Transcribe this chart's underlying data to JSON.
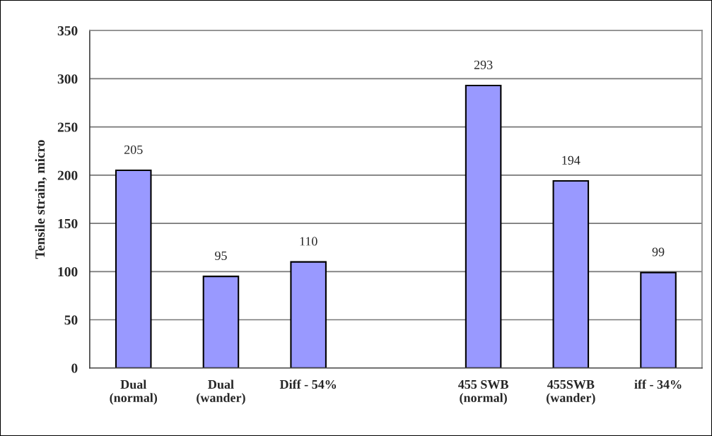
{
  "chart_data": {
    "type": "bar",
    "ylabel": "Tensile strain, micro",
    "categories": [
      "Dual\n(normal)",
      "Dual\n(wander)",
      "Diff - 54%",
      null,
      "455 SWB\n(normal)",
      "455SWB\n(wander)",
      "iff - 34%"
    ],
    "values": [
      205,
      95,
      110,
      null,
      293,
      194,
      99
    ],
    "color": "#9999ff",
    "ylim": [
      0,
      350
    ],
    "yticks": [
      0,
      50,
      100,
      150,
      200,
      250,
      300,
      350
    ],
    "grid": "y",
    "data_labels": true
  }
}
